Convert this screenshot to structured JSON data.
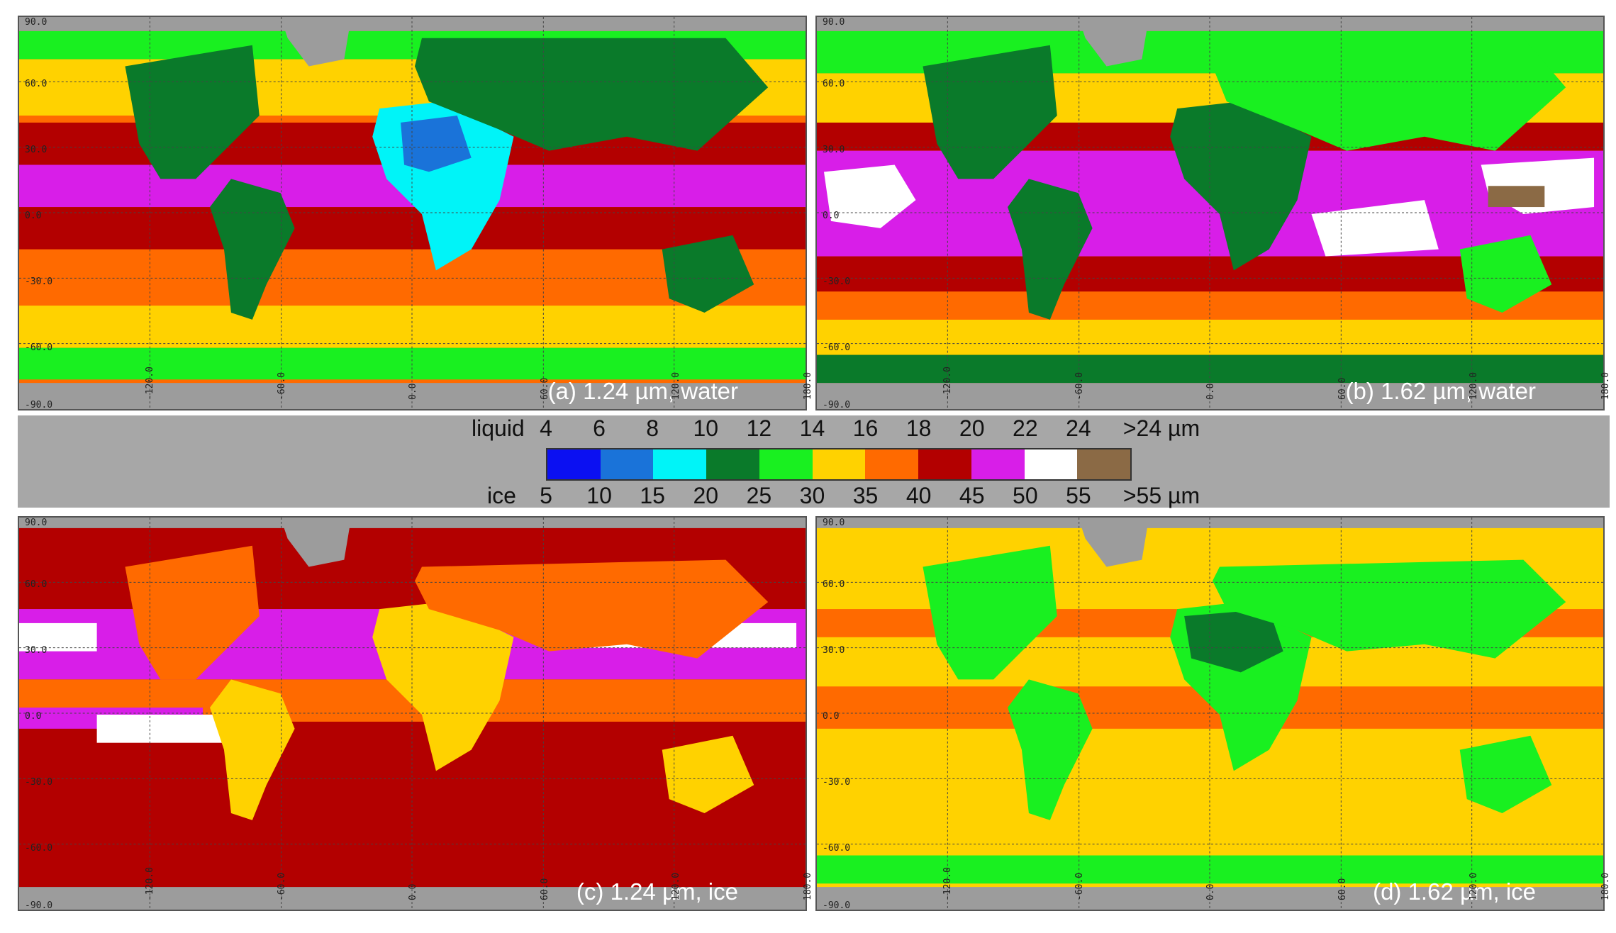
{
  "legend": {
    "liquid_name": "liquid",
    "ice_name": "ice",
    "liquid_ticks": [
      "4",
      "6",
      "8",
      "10",
      "12",
      "14",
      "16",
      "18",
      "20",
      "22",
      "24",
      ">24 µm"
    ],
    "ice_ticks": [
      "5",
      "10",
      "15",
      "20",
      "25",
      "30",
      "35",
      "40",
      "45",
      "50",
      "55",
      ">55 µm"
    ],
    "colors": [
      "#0b10f2",
      "#1a73d9",
      "#00f4f8",
      "#0a7a2a",
      "#19f020",
      "#ffd200",
      "#ff6a00",
      "#b30000",
      "#d81ee8",
      "#ffffff",
      "#8b6a45"
    ]
  },
  "panels": [
    {
      "label": "(a) 1.24 µm, water",
      "base": "#ff6a00"
    },
    {
      "label": "(b) 1.62 µm, water",
      "base": "#ff6a00"
    },
    {
      "label": "(c) 1.24 µm, ice",
      "base": "#b30000"
    },
    {
      "label": "(d) 1.62 µm, ice",
      "base": "#ffd200"
    }
  ],
  "grid": {
    "lat_labels": [
      "90.0",
      "60.0",
      "30.0",
      "0.0",
      "-30.0",
      "-60.0",
      "-90.0"
    ],
    "lon_labels": [
      "-120.0",
      "-60.0",
      "0.0",
      "60.0",
      "120.0",
      "180.0"
    ]
  }
}
